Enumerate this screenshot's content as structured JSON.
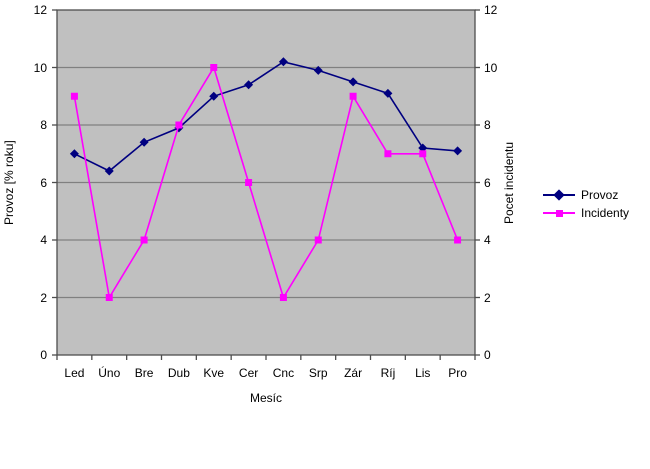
{
  "chart_data": {
    "type": "line",
    "title": "",
    "xlabel": "Mesíc",
    "ylabel_left": "Provoz [% roku]",
    "ylabel_right": "Pocet incidentu",
    "ylim": [
      0,
      12
    ],
    "yticks": [
      0,
      2,
      4,
      6,
      8,
      10,
      12
    ],
    "grid": true,
    "legend_position": "right",
    "categories": [
      "Led",
      "Úno",
      "Bre",
      "Dub",
      "Kve",
      "Cer",
      "Cnc",
      "Srp",
      "Zár",
      "Ríj",
      "Lis",
      "Pro"
    ],
    "series": [
      {
        "name": "Provoz",
        "axis": "left",
        "color": "#000080",
        "marker": "diamond",
        "values": [
          7.0,
          6.4,
          7.4,
          7.9,
          9.0,
          9.4,
          10.2,
          9.9,
          9.5,
          9.1,
          7.2,
          7.1
        ]
      },
      {
        "name": "Incidenty",
        "axis": "right",
        "color": "#FF00FF",
        "marker": "square",
        "values": [
          9,
          2,
          4,
          8,
          10,
          6,
          2,
          4,
          9,
          7,
          7,
          4
        ]
      }
    ],
    "colors": {
      "page_bg": "#FFFFFF",
      "plot_bg": "#C0C0C0",
      "grid": "#808080",
      "axis": "#4d4d4d",
      "text": "#000000"
    }
  }
}
